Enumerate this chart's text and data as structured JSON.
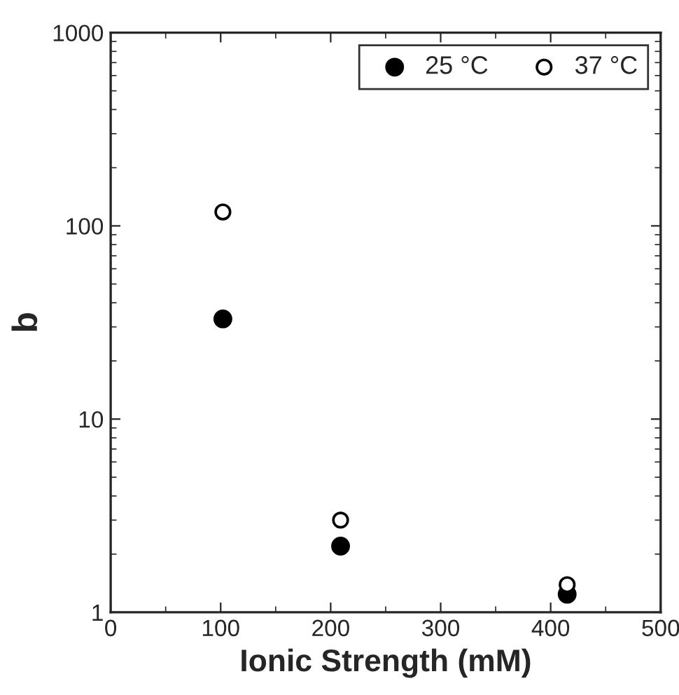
{
  "chart_data": {
    "type": "scatter",
    "xlabel": "Ionic Strength (mM)",
    "ylabel": "b",
    "x": [
      102,
      209,
      415
    ],
    "series": [
      {
        "name": "25 °C",
        "color": "#000000",
        "values": [
          33,
          2.2,
          1.24
        ]
      },
      {
        "name": "37 °C",
        "color": "#000000",
        "values": [
          118,
          3.0,
          1.39
        ]
      }
    ],
    "log": "y",
    "xlim": [
      0,
      500
    ],
    "xticks": [
      0,
      100,
      200,
      300,
      400,
      500
    ],
    "ylim": [
      1,
      1000
    ],
    "yticks": [
      1,
      10,
      100,
      1000
    ],
    "marker": "circle",
    "grid": false,
    "legend": "top right"
  }
}
